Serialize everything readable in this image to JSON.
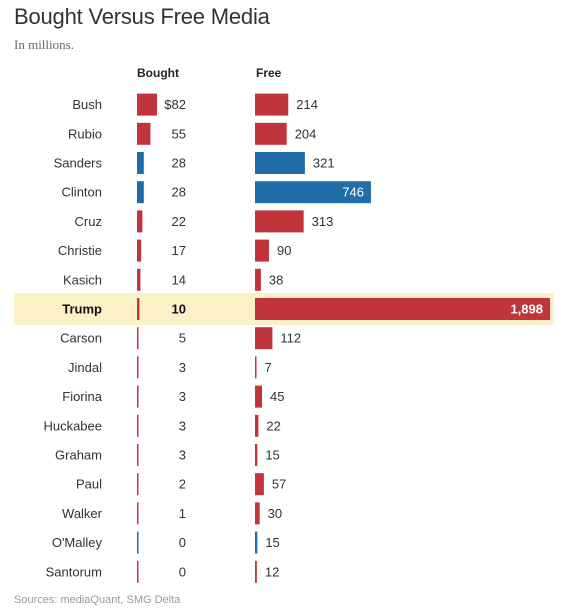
{
  "title": "Bought Versus Free Media",
  "subtitle": "In millions.",
  "source": "Sources: mediaQuant, SMG Delta",
  "colors": {
    "red": "#c0343b",
    "blue": "#1f6ea8",
    "highlight": "#fcf0c8"
  },
  "chart_data": [
    {
      "type": "bar",
      "orientation": "horizontal",
      "column_header": "Bought",
      "categories": [
        "Bush",
        "Rubio",
        "Sanders",
        "Clinton",
        "Cruz",
        "Christie",
        "Kasich",
        "Trump",
        "Carson",
        "Jindal",
        "Fiorina",
        "Huckabee",
        "Graham",
        "Paul",
        "Walker",
        "O'Malley",
        "Santorum"
      ],
      "values": [
        82,
        55,
        28,
        28,
        22,
        17,
        14,
        10,
        5,
        3,
        3,
        3,
        3,
        2,
        1,
        0,
        0
      ],
      "value_labels": [
        "$82",
        "55",
        "28",
        "28",
        "22",
        "17",
        "14",
        "10",
        "5",
        "3",
        "3",
        "3",
        "3",
        "2",
        "1",
        "0",
        "0"
      ],
      "bar_colors": [
        "red",
        "red",
        "blue",
        "blue",
        "red",
        "red",
        "red",
        "red",
        "red",
        "red",
        "red",
        "red",
        "red",
        "red",
        "red",
        "blue",
        "red"
      ],
      "highlight_category": "Trump"
    },
    {
      "type": "bar",
      "orientation": "horizontal",
      "column_header": "Free",
      "categories": [
        "Bush",
        "Rubio",
        "Sanders",
        "Clinton",
        "Cruz",
        "Christie",
        "Kasich",
        "Trump",
        "Carson",
        "Jindal",
        "Fiorina",
        "Huckabee",
        "Graham",
        "Paul",
        "Walker",
        "O'Malley",
        "Santorum"
      ],
      "values": [
        214,
        204,
        321,
        746,
        313,
        90,
        38,
        1898,
        112,
        7,
        45,
        22,
        15,
        57,
        30,
        15,
        12
      ],
      "value_labels": [
        "214",
        "204",
        "321",
        "746",
        "313",
        "90",
        "38",
        "1,898",
        "112",
        "7",
        "45",
        "22",
        "15",
        "57",
        "30",
        "15",
        "12"
      ],
      "bar_colors": [
        "red",
        "red",
        "blue",
        "blue",
        "red",
        "red",
        "red",
        "red",
        "red",
        "red",
        "red",
        "red",
        "red",
        "red",
        "red",
        "blue",
        "red"
      ],
      "highlight_category": "Trump"
    }
  ]
}
